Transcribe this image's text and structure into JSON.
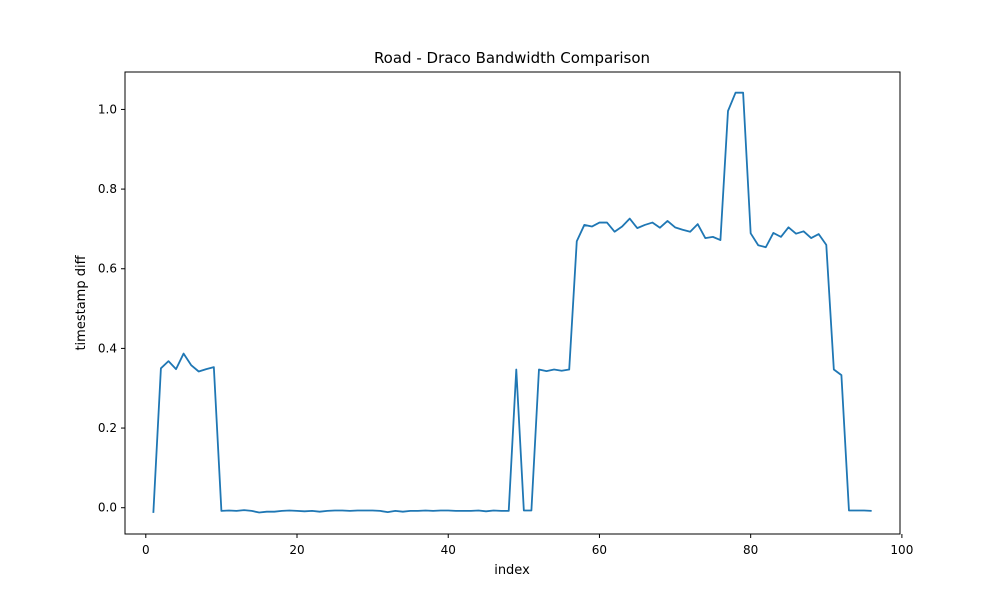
{
  "chart_data": {
    "type": "line",
    "title": "Road - Draco Bandwidth Comparison",
    "xlabel": "index",
    "ylabel": "timestamp diff",
    "xlim": [
      -2.75,
      99.75
    ],
    "ylim": [
      -0.066,
      1.094
    ],
    "xticks": [
      0,
      20,
      40,
      60,
      80,
      100
    ],
    "yticks": [
      0.0,
      0.2,
      0.4,
      0.6,
      0.8,
      1.0
    ],
    "xtick_labels": [
      "0",
      "20",
      "40",
      "60",
      "80",
      "100"
    ],
    "ytick_labels": [
      "0.0",
      "0.2",
      "0.4",
      "0.6",
      "0.8",
      "1.0"
    ],
    "grid": false,
    "legend": false,
    "line_color": "#1f77b4",
    "series": [
      {
        "x": [
          1,
          2,
          3,
          4,
          5,
          6,
          7,
          8,
          9,
          10,
          11,
          12,
          13,
          14,
          15,
          16,
          17,
          18,
          19,
          20,
          21,
          22,
          23,
          24,
          25,
          26,
          27,
          28,
          29,
          30,
          31,
          32,
          33,
          34,
          35,
          36,
          37,
          38,
          39,
          40,
          41,
          42,
          43,
          44,
          45,
          46,
          47,
          48,
          49,
          50,
          51,
          52,
          53,
          54,
          55,
          56,
          57,
          58,
          59,
          60,
          61,
          62,
          63,
          64,
          65,
          66,
          67,
          68,
          69,
          70,
          71,
          72,
          73,
          74,
          75,
          76,
          77,
          78,
          79,
          80,
          81,
          82,
          83,
          84,
          85,
          86,
          87,
          88,
          89,
          90,
          91,
          92,
          93,
          94,
          95,
          96
        ],
        "values": [
          -0.013,
          0.35,
          0.368,
          0.348,
          0.387,
          0.358,
          0.342,
          0.348,
          0.353,
          -0.008,
          -0.007,
          -0.008,
          -0.006,
          -0.008,
          -0.012,
          -0.01,
          -0.01,
          -0.008,
          -0.007,
          -0.008,
          -0.009,
          -0.008,
          -0.01,
          -0.008,
          -0.007,
          -0.007,
          -0.008,
          -0.007,
          -0.007,
          -0.007,
          -0.008,
          -0.011,
          -0.008,
          -0.01,
          -0.008,
          -0.008,
          -0.007,
          -0.008,
          -0.007,
          -0.007,
          -0.008,
          -0.008,
          -0.008,
          -0.007,
          -0.009,
          -0.007,
          -0.008,
          -0.008,
          0.347,
          -0.007,
          -0.007,
          0.347,
          0.343,
          0.347,
          0.344,
          0.347,
          0.669,
          0.71,
          0.706,
          0.716,
          0.716,
          0.693,
          0.706,
          0.726,
          0.702,
          0.71,
          0.716,
          0.703,
          0.72,
          0.704,
          0.698,
          0.693,
          0.712,
          0.677,
          0.68,
          0.672,
          0.996,
          1.042,
          1.042,
          0.689,
          0.659,
          0.654,
          0.69,
          0.68,
          0.704,
          0.688,
          0.694,
          0.677,
          0.687,
          0.66,
          0.347,
          0.333,
          -0.007,
          -0.007,
          -0.007,
          -0.008
        ]
      }
    ]
  }
}
